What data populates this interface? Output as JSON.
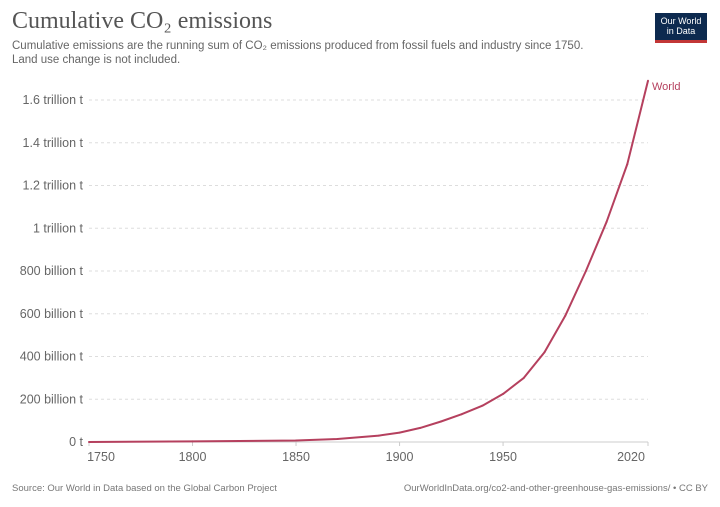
{
  "chart_data": {
    "type": "line",
    "title": "Cumulative CO₂ emissions",
    "subtitle_lines": [
      "Cumulative emissions are the running sum of CO₂ emissions produced from fossil fuels and industry since 1750.",
      "Land use change is not included."
    ],
    "xlim": [
      1750,
      2020
    ],
    "ylim": [
      0,
      1600
    ],
    "grid": true,
    "x_ticks": [
      1750,
      1800,
      1850,
      1900,
      1950,
      2020
    ],
    "x_tick_labels": [
      "1750",
      "1800",
      "1850",
      "1900",
      "1950",
      "2020"
    ],
    "y_ticks": [
      0,
      200,
      400,
      600,
      800,
      1000,
      1200,
      1400,
      1600
    ],
    "y_tick_labels": [
      "0 t",
      "200 billion t",
      "400 billion t",
      "600 billion t",
      "800 billion t",
      "1 trillion t",
      "1.2 trillion t",
      "1.4 trillion t",
      "1.6 trillion t"
    ],
    "series": [
      {
        "name": "World",
        "color": "#b5405e",
        "x": [
          1750,
          1800,
          1850,
          1870,
          1890,
          1900,
          1910,
          1920,
          1930,
          1940,
          1950,
          1960,
          1970,
          1980,
          1990,
          2000,
          2010,
          2020
        ],
        "y": [
          0,
          3,
          7,
          14,
          30,
          44,
          66,
          96,
          130,
          170,
          225,
          300,
          420,
          590,
          800,
          1030,
          1300,
          1690
        ]
      }
    ]
  },
  "logo": {
    "line1": "Our World",
    "line2": "in Data"
  },
  "footer": {
    "source": "Source: Our World in Data based on the Global Carbon Project",
    "url": "OurWorldInData.org/co2-and-other-greenhouse-gas-emissions/ • CC BY"
  }
}
